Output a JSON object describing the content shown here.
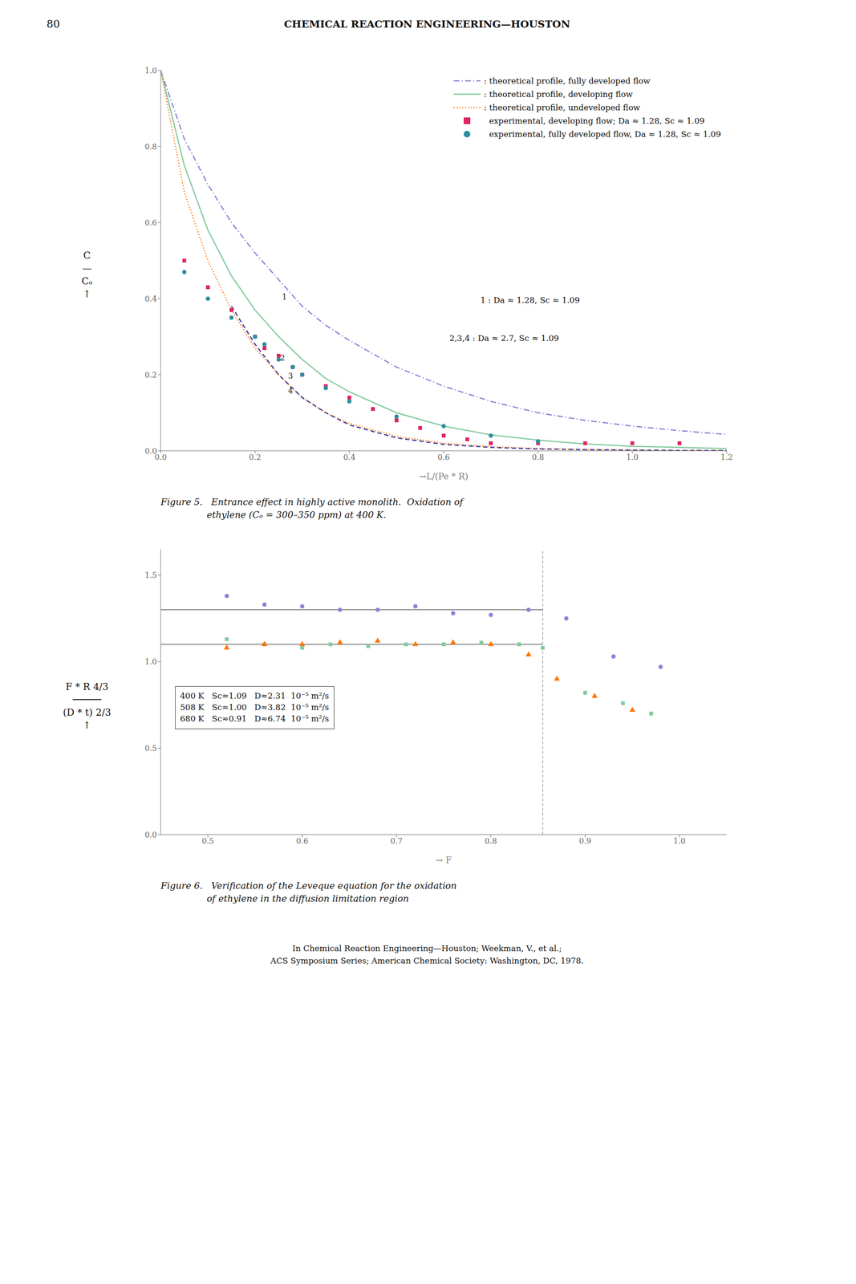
{
  "page_number": "80",
  "header": "CHEMICAL REACTION ENGINEERING—HOUSTON",
  "footer": [
    "In Chemical Reaction Engineering—Houston; Weekman, V., et al.;",
    "ACS Symposium Series; American Chemical Society: Washington, DC, 1978."
  ],
  "chart_data": [
    {
      "type": "line",
      "title": "Figure 5.   Entrance effect in highly active monolith.  Oxidation of\n                ethylene (Cₒ = 300–350 ppm) at 400 K.",
      "xlabel": "→L/(Pe * R)",
      "ylabel": "C\n—\nCₒ\n↑",
      "xlim": [
        0,
        1.2
      ],
      "ylim": [
        0,
        1.0
      ],
      "xticks": [
        {
          "value": 0,
          "label": "0.0"
        },
        0.2,
        0.4,
        0.6,
        0.8,
        {
          "value": 1.0,
          "label": "1.0"
        },
        1.2
      ],
      "yticks": [
        {
          "value": 0,
          "label": "0.0"
        },
        0.2,
        0.4,
        0.6,
        0.8,
        {
          "value": 1.0,
          "label": "1.0"
        }
      ],
      "grid": false,
      "legend": "upper right",
      "series": [
        {
          "name": ": theoretical profile, fully developed flow",
          "type": "line",
          "line_style": "dashdot",
          "color": "#8884d8",
          "x": [
            0.0,
            0.05,
            0.1,
            0.15,
            0.2,
            0.25,
            0.3,
            0.35,
            0.4,
            0.5,
            0.6,
            0.7,
            0.8,
            0.9,
            1.0,
            1.1,
            1.2
          ],
          "values": [
            1.0,
            0.82,
            0.7,
            0.6,
            0.52,
            0.45,
            0.38,
            0.33,
            0.29,
            0.22,
            0.17,
            0.13,
            0.1,
            0.08,
            0.065,
            0.053,
            0.043
          ]
        },
        {
          "name": ": theoretical profile, developing flow",
          "type": "line",
          "line_style": "solid",
          "color": "#82ca9d",
          "x": [
            0.0,
            0.05,
            0.1,
            0.15,
            0.2,
            0.25,
            0.3,
            0.35,
            0.4,
            0.5,
            0.6,
            0.7,
            0.8,
            0.9,
            1.0,
            1.1,
            1.2
          ],
          "values": [
            1.0,
            0.75,
            0.58,
            0.46,
            0.37,
            0.3,
            0.24,
            0.19,
            0.155,
            0.1,
            0.065,
            0.042,
            0.028,
            0.018,
            0.012,
            0.009,
            0.006
          ]
        },
        {
          "name": ": theoretical profile, undeveloped flow",
          "type": "line",
          "line_style": "dotted",
          "color": "#ff7300",
          "x": [
            0.0,
            0.05,
            0.1,
            0.15,
            0.2,
            0.25,
            0.3,
            0.35,
            0.4,
            0.5,
            0.6,
            0.7,
            0.8,
            0.9,
            1.0,
            1.1,
            1.2
          ],
          "values": [
            1.0,
            0.68,
            0.5,
            0.37,
            0.27,
            0.2,
            0.14,
            0.1,
            0.072,
            0.038,
            0.02,
            0.011,
            0.006,
            0.004,
            0.002,
            0.001,
            0.001
          ]
        },
        {
          "type": "line",
          "line_style": "dashed",
          "color": "#413ea0",
          "x": [
            0.15,
            0.2,
            0.25,
            0.3,
            0.35,
            0.4,
            0.5,
            0.6,
            0.7,
            0.8,
            0.9,
            1.0,
            1.1,
            1.2
          ],
          "values": [
            0.38,
            0.28,
            0.2,
            0.14,
            0.1,
            0.068,
            0.034,
            0.017,
            0.009,
            0.005,
            0.003,
            0.002,
            0.001,
            0.001
          ]
        },
        {
          "name": "  experimental, developing flow; Da ≈ 1.28, Sc ≈ 1.09",
          "type": "scatter",
          "marker": "square",
          "color": "#e0245e",
          "x": [
            0.05,
            0.1,
            0.15,
            0.2,
            0.22,
            0.25,
            0.28,
            0.3,
            0.35,
            0.4,
            0.45,
            0.5,
            0.55,
            0.6,
            0.65,
            0.7,
            0.8,
            0.9,
            1.0,
            1.1
          ],
          "values": [
            0.5,
            0.43,
            0.37,
            0.3,
            0.27,
            0.25,
            0.22,
            0.2,
            0.17,
            0.14,
            0.11,
            0.08,
            0.06,
            0.04,
            0.03,
            0.02,
            0.02,
            0.02,
            0.02,
            0.02
          ]
        },
        {
          "name": "  experimental, fully developed flow, Da ≈ 1.28, Sc ≈ 1.09",
          "type": "scatter",
          "marker": "circle",
          "color": "#2f8f9d",
          "x": [
            0.05,
            0.1,
            0.15,
            0.2,
            0.22,
            0.25,
            0.28,
            0.3,
            0.35,
            0.4,
            0.5,
            0.6,
            0.7,
            0.8
          ],
          "values": [
            0.47,
            0.4,
            0.35,
            0.3,
            0.28,
            0.24,
            0.22,
            0.2,
            0.165,
            0.13,
            0.09,
            0.065,
            0.04,
            0.025
          ]
        }
      ],
      "annotations": [
        {
          "text": "1",
          "x": 0.252,
          "y": 0.405
        },
        {
          "text": "2",
          "x": 0.248,
          "y": 0.245
        },
        {
          "text": "3",
          "x": 0.265,
          "y": 0.197
        },
        {
          "text": "4",
          "x": 0.265,
          "y": 0.158
        },
        "1 : Da ≈ 1.28, Sc ≈ 1.09",
        "2,3,4 : Da ≈ 2.7, Sc ≈ 1.09"
      ]
    },
    {
      "type": "scatter",
      "title": "Figure 6.   Verification of the Leveque equation for the oxidation\n                of ethylene in the diffusion limitation region",
      "xlabel": "→ F",
      "ylabel": "F * R 4/3\n─────\n(D * t) 2/3\n↑",
      "xlim": [
        0.45,
        1.05
      ],
      "ylim": [
        0,
        1.65
      ],
      "xticks": [
        0.5,
        0.6,
        0.7,
        0.8,
        0.9,
        {
          "value": 1.0,
          "label": "1.0"
        }
      ],
      "yticks": [
        {
          "value": 0,
          "label": "0.0"
        },
        0.5,
        {
          "value": 1.0,
          "label": "1.0"
        },
        1.5
      ],
      "grid": false,
      "hlines": [
        1.3,
        1.1
      ],
      "vline": 0.855,
      "series": [
        {
          "type": "scatter",
          "marker": "circle",
          "color": "#8884d8",
          "x": [
            0.52,
            0.56,
            0.6,
            0.64,
            0.68,
            0.72,
            0.76,
            0.8,
            0.84,
            0.88,
            0.93,
            0.98
          ],
          "values": [
            1.38,
            1.33,
            1.32,
            1.3,
            1.3,
            1.32,
            1.28,
            1.27,
            1.3,
            1.25,
            1.03,
            0.97
          ]
        },
        {
          "type": "scatter",
          "marker": "square",
          "color": "#82ca9d",
          "x": [
            0.52,
            0.56,
            0.6,
            0.63,
            0.67,
            0.71,
            0.75,
            0.79,
            0.83,
            0.855,
            0.9,
            0.94,
            0.97
          ],
          "values": [
            1.13,
            1.1,
            1.08,
            1.1,
            1.09,
            1.1,
            1.1,
            1.11,
            1.1,
            1.08,
            0.82,
            0.76,
            0.7
          ]
        },
        {
          "type": "scatter",
          "marker": "triangle",
          "color": "#ff7300",
          "x": [
            0.52,
            0.56,
            0.6,
            0.64,
            0.68,
            0.72,
            0.76,
            0.8,
            0.84,
            0.87,
            0.91,
            0.95
          ],
          "values": [
            1.08,
            1.1,
            1.1,
            1.11,
            1.12,
            1.1,
            1.11,
            1.1,
            1.04,
            0.9,
            0.8,
            0.72
          ]
        }
      ],
      "annotations": [
        "400 K   Sc≈1.09   D≈2.31  10⁻⁵ m²/s\n508 K   Sc≈1.00   D≈3.82  10⁻⁵ m²/s\n680 K   Sc≈0.91   D≈6.74  10⁻⁵ m²/s"
      ]
    }
  ]
}
